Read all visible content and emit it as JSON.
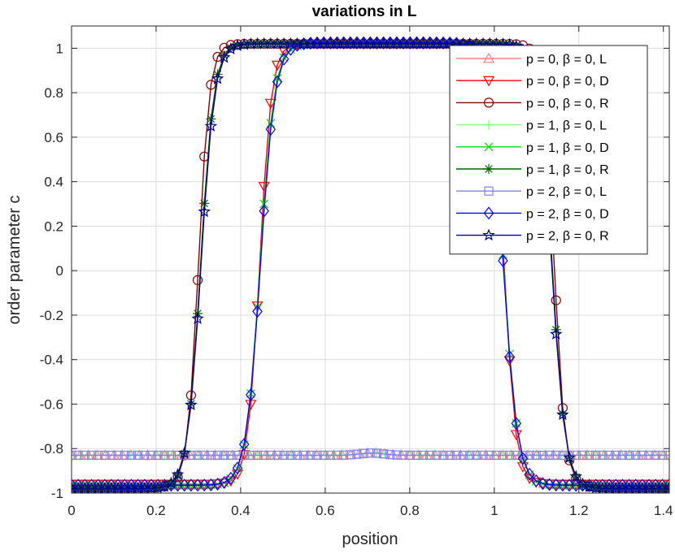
{
  "chart_data": {
    "type": "line",
    "title": "variations in L",
    "xlabel": "position",
    "ylabel": "order parameter c",
    "xlim": [
      0,
      1.414
    ],
    "ylim": [
      -1,
      1.1
    ],
    "xticks": [
      0,
      0.2,
      0.4,
      0.6,
      0.8,
      1,
      1.2,
      1.4
    ],
    "yticks": [
      -1,
      -0.8,
      -0.6,
      -0.4,
      -0.2,
      0,
      0.2,
      0.4,
      0.6,
      0.8,
      1
    ],
    "xtick_labels": [
      "0",
      "0.2",
      "0.4",
      "0.6",
      "0.8",
      "1",
      "1.2",
      "1.4"
    ],
    "ytick_labels": [
      "-1",
      "-0.8",
      "-0.6",
      "-0.4",
      "-0.2",
      "0",
      "0.2",
      "0.4",
      "0.6",
      "0.8",
      "1"
    ],
    "grid": true,
    "legend_position": "top-right",
    "series": [
      {
        "name": "p = 0,   β = 0, L",
        "color": "#ff8080",
        "marker": "triangle-up",
        "profile": "flat",
        "params": {
          "level": -0.83,
          "bump": 0.01,
          "step": 0.02
        }
      },
      {
        "name": "p = 0,   β = 0, D",
        "color": "#ff0000",
        "marker": "triangle-down",
        "profile": "tanh",
        "params": {
          "x1": 0.445,
          "x2": 1.023,
          "w": 0.028,
          "low": -0.96,
          "high": 1.02,
          "step": 0.0157
        }
      },
      {
        "name": "p = 0,   β = 0, R",
        "color": "#8b0000",
        "marker": "circle",
        "profile": "tanh",
        "params": {
          "x1": 0.3,
          "x2": 1.142,
          "w": 0.026,
          "low": -0.975,
          "high": 1.02,
          "step": 0.0157
        }
      },
      {
        "name": "p = 1,   β = 0, L",
        "color": "#80ff80",
        "marker": "plus",
        "profile": "flat",
        "params": {
          "level": -0.83,
          "bump": 0.01,
          "step": 0.02
        }
      },
      {
        "name": "p = 1,   β = 0, D",
        "color": "#00e000",
        "marker": "x",
        "profile": "tanh",
        "params": {
          "x1": 0.446,
          "x2": 1.022,
          "w": 0.033,
          "low": -0.965,
          "high": 1.02,
          "step": 0.0157
        }
      },
      {
        "name": "p = 1,   β = 0, R",
        "color": "#006400",
        "marker": "asterisk",
        "profile": "tanh",
        "params": {
          "x1": 0.305,
          "x2": 1.137,
          "w": 0.031,
          "low": -0.98,
          "high": 1.02,
          "step": 0.0157
        }
      },
      {
        "name": "p = 2,   β = 0, L",
        "color": "#8080ff",
        "marker": "square",
        "profile": "flat",
        "params": {
          "level": -0.83,
          "bump": 0.01,
          "step": 0.0157
        }
      },
      {
        "name": "p = 2,   β = 0, D",
        "color": "#0000ff",
        "marker": "diamond",
        "profile": "tanh",
        "params": {
          "x1": 0.447,
          "x2": 1.021,
          "w": 0.034,
          "low": -0.965,
          "high": 1.025,
          "step": 0.0157
        }
      },
      {
        "name": "p = 2,   β = 0, R",
        "color": "#00008b",
        "marker": "pentagram",
        "profile": "tanh",
        "params": {
          "x1": 0.306,
          "x2": 1.136,
          "w": 0.032,
          "low": -0.98,
          "high": 1.02,
          "step": 0.0157
        }
      }
    ]
  }
}
